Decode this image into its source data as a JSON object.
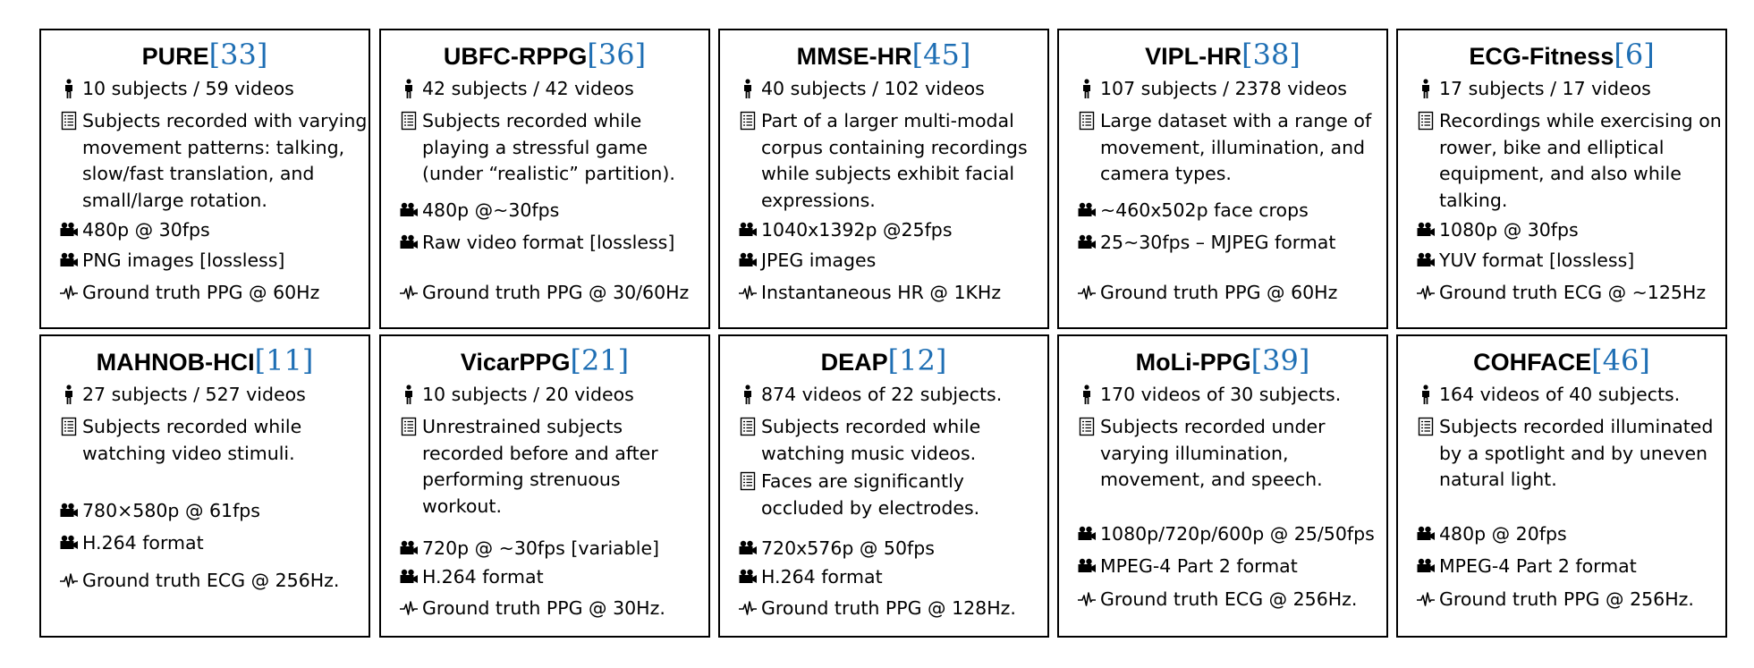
{
  "datasets": [
    {
      "name": "PURE",
      "ref": "33",
      "subjects": "10  subjects / 59 videos",
      "descriptions": [
        [
          "Subjects recorded with varying",
          "movement patterns: talking,",
          "slow/fast translation, and",
          "small/large rotation."
        ]
      ],
      "video": [
        "480p @ 30fps",
        "PNG images [lossless]"
      ],
      "signal": "Ground truth PPG @ 60Hz"
    },
    {
      "name": "UBFC-RPPG",
      "ref": "36",
      "subjects": "42 subjects / 42 videos",
      "descriptions": [
        [
          "Subjects recorded while",
          "playing a stressful game",
          "(under “realistic” partition)."
        ]
      ],
      "video": [
        "480p @~30fps",
        "Raw video format [lossless]"
      ],
      "signal": "Ground truth PPG @ 30/60Hz"
    },
    {
      "name": "MMSE-HR",
      "ref": "45",
      "subjects": "40 subjects / 102 videos",
      "descriptions": [
        [
          "Part of a larger multi-modal",
          "corpus containing recordings",
          "while subjects exhibit facial",
          "expressions."
        ]
      ],
      "video": [
        "1040x1392p @25fps",
        "JPEG images"
      ],
      "signal": "Instantaneous HR @ 1KHz"
    },
    {
      "name": "VIPL-HR",
      "ref": "38",
      "subjects": "107 subjects / 2378 videos",
      "descriptions": [
        [
          "Large dataset with a range of",
          "movement, illumination, and",
          "camera types."
        ]
      ],
      "video": [
        "~460x502p face crops",
        "25~30fps – MJPEG format"
      ],
      "signal": "Ground truth PPG @ 60Hz"
    },
    {
      "name": "ECG-Fitness",
      "ref": "6",
      "subjects": "17 subjects / 17 videos",
      "descriptions": [
        [
          "Recordings while exercising on",
          "rower, bike and elliptical",
          "equipment, and also while",
          "talking."
        ]
      ],
      "video": [
        "1080p @ 30fps",
        "YUV format [lossless]"
      ],
      "signal": "Ground truth ECG @ ~125Hz"
    },
    {
      "name": "MAHNOB-HCI",
      "ref": "11",
      "subjects": "27 subjects / 527 videos",
      "descriptions": [
        [
          "Subjects recorded while",
          "watching video stimuli."
        ]
      ],
      "video": [
        "780×580p @ 61fps",
        "H.264 format"
      ],
      "signal": "Ground truth ECG @ 256Hz."
    },
    {
      "name": "VicarPPG",
      "ref": "21",
      "subjects": "10 subjects / 20 videos",
      "descriptions": [
        [
          "Unrestrained subjects",
          "recorded before and after",
          "performing strenuous",
          "workout."
        ]
      ],
      "video": [
        "720p @ ~30fps [variable]",
        "H.264 format"
      ],
      "signal": "Ground truth PPG @ 30Hz."
    },
    {
      "name": "DEAP",
      "ref": "12",
      "subjects": "874 videos of 22 subjects.",
      "descriptions": [
        [
          "Subjects recorded while",
          "watching music videos."
        ],
        [
          "Faces are significantly",
          "occluded by electrodes."
        ]
      ],
      "video": [
        "720x576p @ 50fps",
        "H.264 format"
      ],
      "signal": "Ground truth PPG @ 128Hz."
    },
    {
      "name": "MoLi-PPG",
      "ref": "39",
      "subjects": "170 videos of 30 subjects.",
      "descriptions": [
        [
          "Subjects recorded under",
          "varying illumination,",
          "movement, and speech."
        ]
      ],
      "video": [
        "1080p/720p/600p @ 25/50fps",
        "MPEG-4 Part 2 format"
      ],
      "signal": "Ground truth ECG @ 256Hz."
    },
    {
      "name": "COHFACE",
      "ref": "46",
      "subjects": "164 videos of 40 subjects.",
      "descriptions": [
        [
          "Subjects recorded illuminated",
          "by a spotlight and by uneven",
          "natural light."
        ]
      ],
      "video": [
        "480p @ 20fps",
        "MPEG-4 Part 2 format"
      ],
      "signal": "Ground truth PPG @ 256Hz."
    }
  ],
  "icons": {
    "subjects": "person-icon",
    "description": "document-icon",
    "video": "video-camera-icon",
    "signal": "waveform-icon"
  },
  "colors": {
    "reference": "#1f6fb4",
    "border": "#000000",
    "text": "#000000"
  }
}
